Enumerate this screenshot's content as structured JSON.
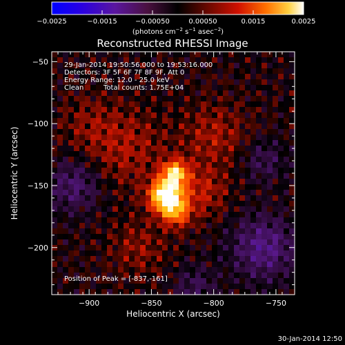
{
  "chart_data": {
    "type": "heatmap",
    "title": "Reconstructed RHESSI Image",
    "xlabel": "Heliocentric X (arcsec)",
    "ylabel": "Heliocentric Y (arcsec)",
    "xlim": [
      -930,
      -735
    ],
    "ylim": [
      -238,
      -42
    ],
    "xticks": [
      -900,
      -850,
      -800,
      -750
    ],
    "yticks": [
      -50,
      -100,
      -150,
      -200
    ],
    "xtick_labels": [
      "−900",
      "−850",
      "−800",
      "−750"
    ],
    "ytick_labels": [
      "−50",
      "−100",
      "−150",
      "−200"
    ],
    "colorbar": {
      "range": [
        -0.0025,
        0.0025
      ],
      "ticks": [
        -0.0025,
        -0.0015,
        -0.0005,
        0.0005,
        0.0015,
        0.0025
      ],
      "tick_labels": [
        "−0.0025",
        "−0.0015",
        "−0.00050",
        "0.00050",
        "0.0015",
        "0.0025"
      ],
      "unit_prefix": "(photons cm",
      "unit_exp1": "−2",
      "unit_mid1": " s",
      "unit_exp2": "−1",
      "unit_mid2": " asec",
      "unit_exp3": "−2",
      "unit_suffix": ")"
    },
    "annotations": {
      "time_range": "29-Jan-2014 19:50:56.000 to 19:53:16.000",
      "detectors": "Detectors: 3F 5F 6F 7F 8F 9F, Att 0",
      "energy_range": "Energy Range: 12.0 - 25.0 keV",
      "algorithm": "Clean",
      "total_counts": "Total counts: 1.75E+04",
      "peak": "Position of Peak = [-837,-161]"
    },
    "peak_position": [
      -837,
      -161
    ],
    "sources": [
      {
        "x": -838,
        "y": -158,
        "amplitude": 0.0027,
        "sigma": 9
      },
      {
        "x": -831,
        "y": -140,
        "amplitude": 0.0019,
        "sigma": 7
      },
      {
        "x": -830,
        "y": -172,
        "amplitude": 0.0012,
        "sigma": 8
      },
      {
        "x": -810,
        "y": -155,
        "amplitude": 0.0006,
        "sigma": 14
      },
      {
        "x": -870,
        "y": -120,
        "amplitude": 0.0005,
        "sigma": 22
      },
      {
        "x": -800,
        "y": -110,
        "amplitude": 0.0005,
        "sigma": 18
      },
      {
        "x": -860,
        "y": -200,
        "amplitude": 0.0004,
        "sigma": 16
      },
      {
        "x": -900,
        "y": -100,
        "amplitude": 0.0003,
        "sigma": 16
      }
    ],
    "negative_regions": [
      {
        "x": -912,
        "y": -150,
        "amplitude": -0.0007,
        "sigma": 15
      },
      {
        "x": -760,
        "y": -200,
        "amplitude": -0.0009,
        "sigma": 18
      },
      {
        "x": -760,
        "y": -130,
        "amplitude": -0.0005,
        "sigma": 12
      },
      {
        "x": -815,
        "y": -232,
        "amplitude": -0.0005,
        "sigma": 12
      }
    ]
  },
  "footer": {
    "timestamp": "30-Jan-2014 12:50"
  }
}
